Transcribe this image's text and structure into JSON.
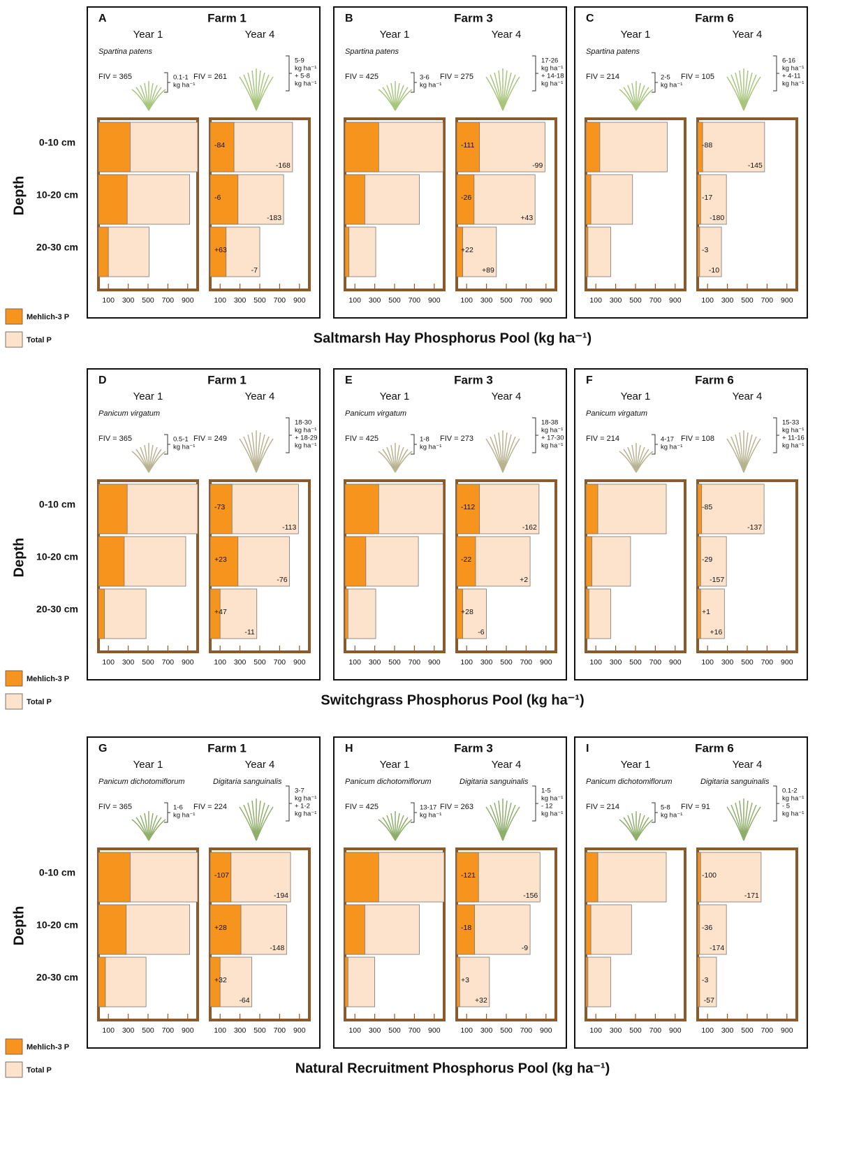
{
  "legend": {
    "mehlich3": {
      "name": "Mehlich-3 P",
      "color": "#f7941d"
    },
    "total": {
      "name": "Total P",
      "color": "#fde3cc"
    }
  },
  "depth_label": "Depth",
  "depths": [
    "0-10 cm",
    "10-20 cm",
    "20-30 cm"
  ],
  "xlim": [
    0,
    1000
  ],
  "xticks": [
    100,
    300,
    500,
    700,
    900
  ],
  "row_titles": [
    "Saltmarsh Hay Phosphorus Pool (kg ha⁻¹)",
    "Switchgrass Phosphorus Pool (kg ha⁻¹)",
    "Natural Recruitment Phosphorus Pool (kg ha⁻¹)"
  ],
  "chart_data": [
    {
      "type": "bar",
      "letter": "A",
      "farm": "Farm 1",
      "years": [
        {
          "label": "Year 1",
          "species": "Spartina patens",
          "fiv": "FIV = 365",
          "yield": [
            "0.1-1",
            "kg ha⁻¹"
          ],
          "mehlich3": [
            320,
            290,
            100
          ],
          "total": [
            1000,
            920,
            510
          ]
        },
        {
          "label": "Year 4",
          "fiv": "FIV = 261",
          "yield": [
            "5-9",
            "kg ha⁻¹",
            "+ 5-8",
            "kg ha⁻¹"
          ],
          "mehlich3": [
            240,
            280,
            160
          ],
          "total": [
            830,
            740,
            500
          ],
          "mehlich3_change": [
            "-84",
            "-6",
            "+63"
          ],
          "total_change": [
            "-168",
            "-183",
            "-7"
          ]
        }
      ]
    },
    {
      "type": "bar",
      "letter": "B",
      "farm": "Farm 3",
      "years": [
        {
          "label": "Year 1",
          "species": "Spartina patens",
          "fiv": "FIV = 425",
          "yield": [
            "3-6",
            "kg ha⁻¹"
          ],
          "mehlich3": [
            340,
            200,
            40
          ],
          "total": [
            990,
            750,
            310
          ]
        },
        {
          "label": "Year 4",
          "fiv": "FIV = 275",
          "yield": [
            "17-26",
            "kg ha⁻¹",
            "+ 14-18",
            "kg ha⁻¹"
          ],
          "mehlich3": [
            230,
            175,
            60
          ],
          "total": [
            890,
            790,
            400
          ],
          "mehlich3_change": [
            "-111",
            "-26",
            "+22"
          ],
          "total_change": [
            "-99",
            "+43",
            "+89"
          ]
        }
      ]
    },
    {
      "type": "bar",
      "letter": "C",
      "farm": "Farm 6",
      "years": [
        {
          "label": "Year 1",
          "species": "Spartina patens",
          "fiv": "FIV = 214",
          "yield": [
            "2-5",
            "kg ha⁻¹"
          ],
          "mehlich3": [
            140,
            50,
            20
          ],
          "total": [
            820,
            470,
            250
          ]
        },
        {
          "label": "Year 4",
          "fiv": "FIV = 105",
          "yield": [
            "6-16",
            "kg ha⁻¹",
            "+ 4-11",
            "kg ha⁻¹"
          ],
          "mehlich3": [
            50,
            30,
            20
          ],
          "total": [
            675,
            290,
            240
          ],
          "mehlich3_change": [
            "-88",
            "-17",
            "-3"
          ],
          "total_change": [
            "-145",
            "-180",
            "-10"
          ]
        }
      ]
    },
    {
      "type": "bar",
      "letter": "D",
      "farm": "Farm 1",
      "years": [
        {
          "label": "Year 1",
          "species": "Panicum virgatum",
          "fiv": "FIV = 365",
          "yield": [
            "0.5-1",
            "kg ha⁻¹"
          ],
          "mehlich3": [
            290,
            260,
            60
          ],
          "total": [
            1000,
            880,
            480
          ]
        },
        {
          "label": "Year 4",
          "fiv": "FIV = 249",
          "yield": [
            "18-30",
            "kg ha⁻¹",
            "+ 18-29",
            "kg ha⁻¹"
          ],
          "mehlich3": [
            220,
            280,
            100
          ],
          "total": [
            890,
            800,
            470
          ],
          "mehlich3_change": [
            "-73",
            "+23",
            "+47"
          ],
          "total_change": [
            "-113",
            "-76",
            "-11"
          ]
        }
      ]
    },
    {
      "type": "bar",
      "letter": "E",
      "farm": "Farm 3",
      "years": [
        {
          "label": "Year 1",
          "species": "Panicum virgatum",
          "fiv": "FIV = 425",
          "yield": [
            "1-8",
            "kg ha⁻¹"
          ],
          "mehlich3": [
            340,
            210,
            30
          ],
          "total": [
            990,
            740,
            310
          ]
        },
        {
          "label": "Year 4",
          "fiv": "FIV = 273",
          "yield": [
            "18-38",
            "kg ha⁻¹",
            "+ 17-30",
            "kg ha⁻¹"
          ],
          "mehlich3": [
            230,
            190,
            60
          ],
          "total": [
            830,
            740,
            300
          ],
          "mehlich3_change": [
            "-112",
            "-22",
            "+28"
          ],
          "total_change": [
            "-162",
            "+2",
            "-6"
          ]
        }
      ]
    },
    {
      "type": "bar",
      "letter": "F",
      "farm": "Farm 6",
      "years": [
        {
          "label": "Year 1",
          "species": "Panicum virgatum",
          "fiv": "FIV = 214",
          "yield": [
            "4-17",
            "kg ha⁻¹"
          ],
          "mehlich3": [
            120,
            60,
            30
          ],
          "total": [
            810,
            450,
            250
          ]
        },
        {
          "label": "Year 4",
          "fiv": "FIV = 108",
          "yield": [
            "15-33",
            "kg ha⁻¹",
            "+ 11-16",
            "kg ha⁻¹"
          ],
          "mehlich3": [
            40,
            30,
            30
          ],
          "total": [
            670,
            290,
            270
          ],
          "mehlich3_change": [
            "-85",
            "-29",
            "+1"
          ],
          "total_change": [
            "-137",
            "-157",
            "+16"
          ]
        }
      ]
    },
    {
      "type": "bar",
      "letter": "G",
      "farm": "Farm 1",
      "years": [
        {
          "label": "Year 1",
          "species": "Panicum dichotomiflorum",
          "fiv": "FIV = 365",
          "yield": [
            "1-6",
            "kg ha⁻¹"
          ],
          "mehlich3": [
            320,
            280,
            70
          ],
          "total": [
            1000,
            920,
            480
          ]
        },
        {
          "label": "Year 4",
          "species": "Digitaria sanguinalis",
          "fiv": "FIV = 224",
          "yield": [
            "3-7",
            "kg ha⁻¹",
            "+ 1-2",
            "kg ha⁻¹"
          ],
          "mehlich3": [
            210,
            310,
            100
          ],
          "total": [
            810,
            770,
            420
          ],
          "mehlich3_change": [
            "-107",
            "+28",
            "+32"
          ],
          "total_change": [
            "-194",
            "-148",
            "-64"
          ]
        }
      ]
    },
    {
      "type": "bar",
      "letter": "H",
      "farm": "Farm 3",
      "years": [
        {
          "label": "Year 1",
          "species": "Panicum dichotomiflorum",
          "fiv": "FIV = 425",
          "yield": [
            "13-17",
            "kg ha⁻¹"
          ],
          "mehlich3": [
            340,
            200,
            30
          ],
          "total": [
            1000,
            750,
            300
          ]
        },
        {
          "label": "Year 4",
          "species": "Digitaria sanguinalis",
          "fiv": "FIV = 263",
          "yield": [
            "1-5",
            "kg ha⁻¹",
            "- 12",
            "kg ha⁻¹"
          ],
          "mehlich3": [
            220,
            180,
            30
          ],
          "total": [
            840,
            740,
            330
          ],
          "mehlich3_change": [
            "-121",
            "-18",
            "+3"
          ],
          "total_change": [
            "-156",
            "-9",
            "+32"
          ]
        }
      ]
    },
    {
      "type": "bar",
      "letter": "I",
      "farm": "Farm 6",
      "years": [
        {
          "label": "Year 1",
          "species": "Panicum dichotomiflorum",
          "fiv": "FIV = 214",
          "yield": [
            "5-8",
            "kg ha⁻¹"
          ],
          "mehlich3": [
            120,
            50,
            20
          ],
          "total": [
            810,
            460,
            250
          ]
        },
        {
          "label": "Year 4",
          "species": "Digitaria sanguinalis",
          "fiv": "FIV = 91",
          "yield": [
            "0.1-2",
            "kg ha⁻¹",
            "- 5",
            "kg ha⁻¹"
          ],
          "mehlich3": [
            30,
            20,
            20
          ],
          "total": [
            640,
            290,
            190
          ],
          "mehlich3_change": [
            "-100",
            "-36",
            "-3"
          ],
          "total_change": [
            "-171",
            "-174",
            "-57"
          ]
        }
      ]
    }
  ]
}
